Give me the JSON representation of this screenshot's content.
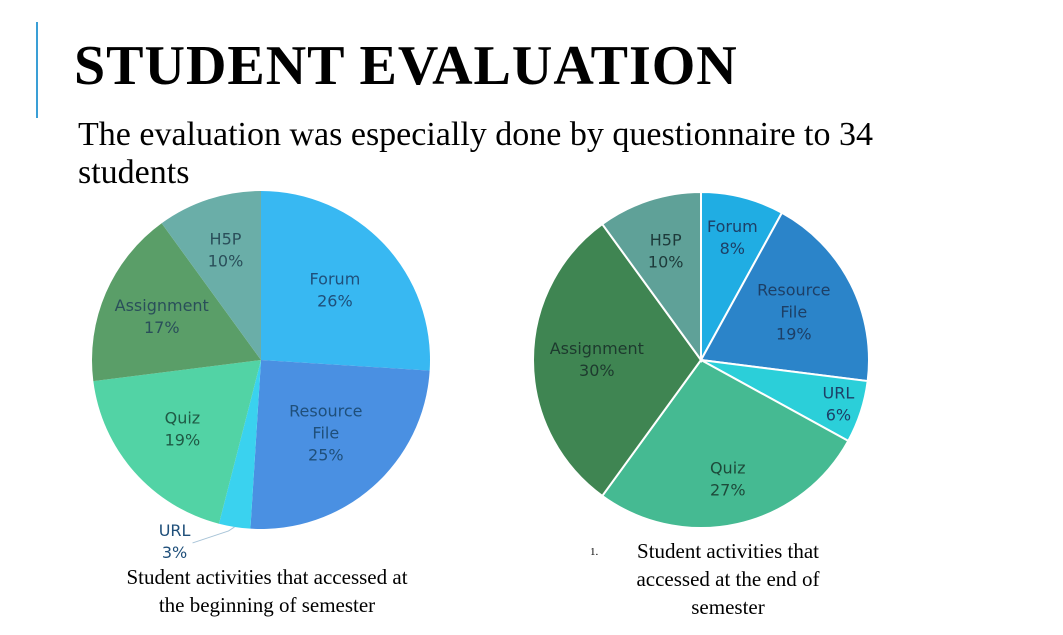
{
  "slide": {
    "title": "STUDENT EVALUATION",
    "subtitle": "The evaluation was especially done by questionnaire to 34 students",
    "accent_color": "#3a9fd6"
  },
  "chart_data": [
    {
      "type": "pie",
      "id": "beginning",
      "caption": "Student activities that accessed at the beginning of semester",
      "categories": [
        "Forum",
        "Resource File",
        "URL",
        "Quiz",
        "Assignment",
        "H5P"
      ],
      "values": [
        26,
        25,
        3,
        19,
        17,
        10
      ],
      "labels": [
        "Forum\n26%",
        "Resource\nFile\n25%",
        "URL\n3%",
        "Quiz\n19%",
        "Assignment\n17%",
        "H5P\n10%"
      ],
      "colors": [
        "#38b8f2",
        "#4a90e2",
        "#3ad2ef",
        "#52d3a5",
        "#5a9e68",
        "#6aaea8"
      ],
      "label_colors": [
        "#1f4f7a",
        "#1f4f7a",
        "#1f4f7a",
        "#1f5a45",
        "#2a4f5a",
        "#2a4f5a"
      ],
      "start_angle_deg": 0
    },
    {
      "type": "pie",
      "id": "end",
      "caption_number": "1.",
      "caption": "Student activities that accessed at the end of semester",
      "categories": [
        "Forum",
        "Resource File",
        "URL",
        "Quiz",
        "Assignment",
        "H5P"
      ],
      "values": [
        8,
        19,
        6,
        27,
        30,
        10
      ],
      "labels": [
        "Forum\n8%",
        "Resource\nFile\n19%",
        "URL\n6%",
        "Quiz\n27%",
        "Assignment\n30%",
        "H5P\n10%"
      ],
      "colors": [
        "#20ade3",
        "#2b84c9",
        "#2bcfd9",
        "#45ba92",
        "#3f8552",
        "#5fa198"
      ],
      "label_colors": [
        "#1d3f66",
        "#1d3f66",
        "#1d3f66",
        "#1d4a3a",
        "#1d3a2e",
        "#1d3a3a"
      ],
      "start_angle_deg": 0
    }
  ]
}
